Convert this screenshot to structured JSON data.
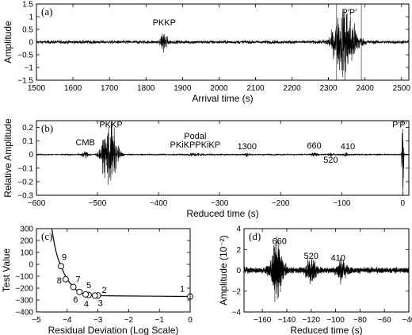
{
  "chart_data": [
    {
      "type": "line",
      "panel": "(a)",
      "xlabel": "Arrival time (s)",
      "ylabel": "Amplitude",
      "xlim": [
        1500,
        2520
      ],
      "ylim": [
        -1.5,
        1.5
      ],
      "xticks": [
        1500,
        1600,
        1700,
        1800,
        1900,
        2000,
        2100,
        2200,
        2300,
        2400,
        2500
      ],
      "yticks": [
        -1.5,
        -1,
        -0.5,
        0,
        0.5,
        1,
        1.5
      ],
      "annotations": [
        {
          "text": "PKKP",
          "x": 1850
        },
        {
          "text": "P′P′",
          "x": 2357
        }
      ],
      "window_lines": [
        2322,
        2390
      ],
      "noise_level": 0.06,
      "bursts": [
        {
          "t": 1850,
          "amp": 0.45,
          "dur": 8
        },
        {
          "t": 2345,
          "amp": 1.3,
          "dur": 30
        }
      ]
    },
    {
      "type": "line",
      "panel": "(b)",
      "xlabel": "Reduced time (s)",
      "ylabel": "Relative Amplitude",
      "xlim": [
        -600,
        10
      ],
      "ylim": [
        -0.3,
        0.25
      ],
      "xticks": [
        -600,
        -500,
        -400,
        -300,
        -200,
        -100,
        0
      ],
      "yticks": [
        -0.3,
        -0.2,
        -0.1,
        0,
        0.1,
        0.2
      ],
      "annotations": [
        {
          "text": "CMB",
          "x": -520,
          "y": 0.07
        },
        {
          "text": "PKKP",
          "x": -478,
          "y": 0.2
        },
        {
          "text": "Podal",
          "x": -340,
          "y": 0.115
        },
        {
          "text": "PKiKPPKiKP",
          "x": -340,
          "y": 0.05
        },
        {
          "text": "1300",
          "x": -255,
          "y": 0.04
        },
        {
          "text": "660",
          "x": -145,
          "y": 0.045
        },
        {
          "text": "410",
          "x": -90,
          "y": 0.04
        },
        {
          "text": "520",
          "x": -118,
          "y": -0.06
        },
        {
          "text": "P′P′",
          "x": -5,
          "y": 0.2
        }
      ],
      "noise_level": 0.004,
      "bursts": [
        {
          "t": -520,
          "amp": 0.02,
          "dur": 6
        },
        {
          "t": -480,
          "amp": 0.22,
          "dur": 12
        },
        {
          "t": -340,
          "amp": 0.01,
          "dur": 15
        },
        {
          "t": -255,
          "amp": 0.012,
          "dur": 5
        },
        {
          "t": -145,
          "amp": 0.012,
          "dur": 5
        },
        {
          "t": -118,
          "amp": 0.01,
          "dur": 4
        },
        {
          "t": -93,
          "amp": 0.01,
          "dur": 4
        },
        {
          "t": 0,
          "amp": 0.28,
          "dur": 1.5
        }
      ]
    },
    {
      "type": "line",
      "panel": "(c)",
      "xlabel": "Residual Deviation (Log Scale)",
      "ylabel": "Test Value",
      "xlim": [
        -5,
        0
      ],
      "ylim": [
        -400,
        300
      ],
      "xticks": [
        -5,
        -4,
        -3,
        -2,
        -1,
        0
      ],
      "yticks": [
        -400,
        -300,
        -200,
        -100,
        0,
        100,
        200,
        300
      ],
      "curve": {
        "x": [
          -4.5,
          -4.45,
          -4.4,
          -4.35,
          -4.3,
          -4.25,
          -4.2,
          -4.15,
          -4.1,
          -4.0,
          -3.9,
          -3.8,
          -3.7,
          -3.6,
          -3.5,
          -3.4,
          -3.3,
          -3.2,
          -3.0,
          -2.5,
          -2.0,
          -1.5,
          -1.0,
          -0.5,
          0.0
        ],
        "y": [
          300,
          220,
          150,
          95,
          50,
          15,
          -15,
          -45,
          -75,
          -125,
          -160,
          -190,
          -215,
          -232,
          -245,
          -252,
          -257,
          -260,
          -263,
          -265,
          -266,
          -267,
          -268,
          -269,
          -270
        ]
      },
      "points": [
        {
          "label": "1",
          "x": 0.0,
          "y": -270
        },
        {
          "label": "2",
          "x": -3.0,
          "y": -261
        },
        {
          "label": "3",
          "x": -3.1,
          "y": -262
        },
        {
          "label": "4",
          "x": -3.3,
          "y": -257
        },
        {
          "label": "5",
          "x": -3.4,
          "y": -252
        },
        {
          "label": "6",
          "x": -3.6,
          "y": -232
        },
        {
          "label": "7",
          "x": -3.8,
          "y": -190
        },
        {
          "label": "8",
          "x": -4.05,
          "y": -125
        },
        {
          "label": "9",
          "x": -4.2,
          "y": -15
        }
      ]
    },
    {
      "type": "line",
      "panel": "(d)",
      "xlabel": "Reduced time (s)",
      "ylabel": "Amplitude (10⁻²)",
      "xlim": [
        -175,
        -40
      ],
      "ylim": [
        -4,
        4
      ],
      "xticks": [
        -160,
        -140,
        -120,
        -100,
        -80,
        -60,
        -40
      ],
      "yticks": [
        -4,
        -2,
        0,
        2,
        4
      ],
      "annotations": [
        {
          "text": "660",
          "x": -146,
          "y": 2.5
        },
        {
          "text": "520",
          "x": -120,
          "y": 1.1
        },
        {
          "text": "410",
          "x": -98,
          "y": 0.9
        }
      ],
      "noise_level": 0.25,
      "bursts": [
        {
          "t": -148,
          "amp": 2.2,
          "dur": 5
        },
        {
          "t": -120,
          "amp": 1.0,
          "dur": 4
        },
        {
          "t": -95,
          "amp": 0.8,
          "dur": 4
        }
      ]
    }
  ]
}
